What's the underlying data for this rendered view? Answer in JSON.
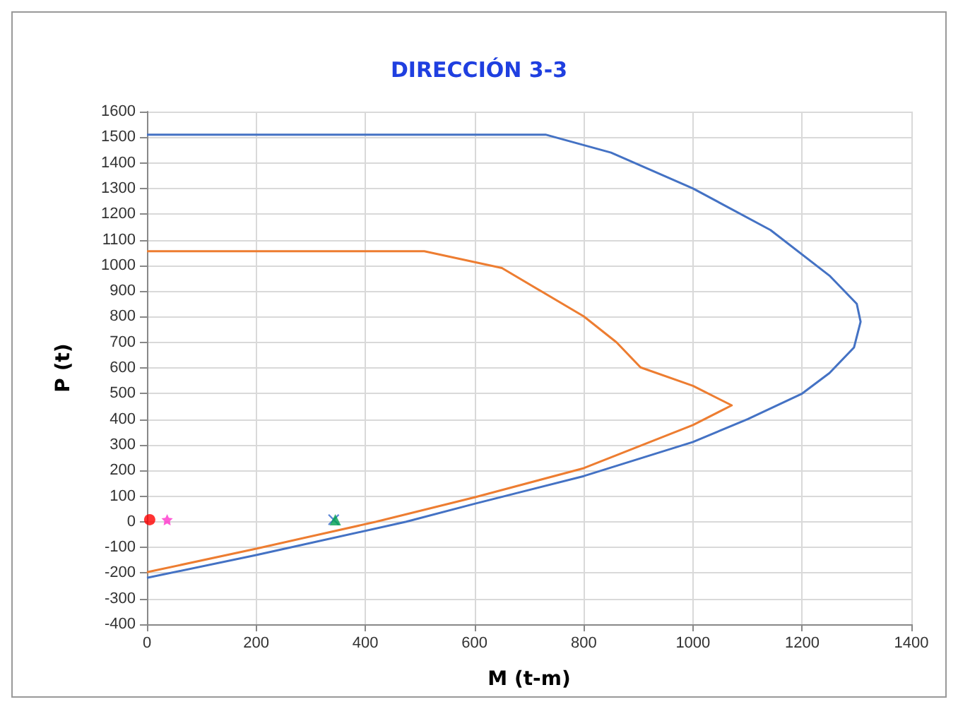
{
  "chart_data": {
    "type": "line",
    "title": "DIRECCIÓN 3-3",
    "xlabel": "M (t-m)",
    "ylabel": "P (t)",
    "xlim": [
      0,
      1400
    ],
    "xticks": [
      0,
      200,
      400,
      600,
      800,
      1000,
      1200,
      1400
    ],
    "ylim": [
      -400,
      1600
    ],
    "yticks": [
      -400,
      -300,
      -200,
      -100,
      0,
      100,
      200,
      300,
      400,
      500,
      600,
      700,
      800,
      900,
      1000,
      1100,
      1200,
      1300,
      1400,
      1500,
      1600
    ],
    "grid": true,
    "marker": "none",
    "series": [
      {
        "color": "#4472c4",
        "x": [
          0,
          730,
          850,
          1000,
          1142,
          1250,
          1300,
          1307,
          1295,
          1250,
          1200,
          1100,
          1000,
          800,
          600,
          475,
          200,
          0
        ],
        "values": [
          1510,
          1510,
          1440,
          1300,
          1138,
          960,
          850,
          780,
          680,
          580,
          500,
          400,
          311,
          178,
          70,
          0,
          -130,
          -219
        ]
      },
      {
        "color": "#ed7d31",
        "x": [
          0,
          508,
          650,
          800,
          860,
          904,
          1000,
          1071,
          1000,
          800,
          600,
          420,
          200,
          0
        ],
        "values": [
          1055,
          1055,
          990,
          801,
          700,
          602,
          530,
          454,
          377,
          209,
          95,
          0,
          -105,
          -197
        ]
      },
      {
        "type": "scatter",
        "marker": "circle",
        "color": "#ff0000",
        "x": [
          5
        ],
        "values": [
          8
        ]
      },
      {
        "type": "scatter",
        "marker": "star",
        "color": "#ff33cc",
        "x": [
          37
        ],
        "values": [
          8
        ]
      },
      {
        "type": "scatter",
        "marker": "cross",
        "color": "#3366cc",
        "x": [
          342
        ],
        "values": [
          8
        ]
      },
      {
        "type": "scatter",
        "marker": "triangle",
        "color": "#00a050",
        "x": [
          345
        ],
        "values": [
          8
        ]
      }
    ]
  }
}
